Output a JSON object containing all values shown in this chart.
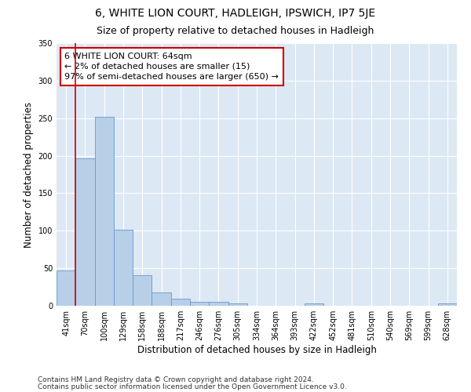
{
  "title1": "6, WHITE LION COURT, HADLEIGH, IPSWICH, IP7 5JE",
  "title2": "Size of property relative to detached houses in Hadleigh",
  "xlabel": "Distribution of detached houses by size in Hadleigh",
  "ylabel": "Number of detached properties",
  "categories": [
    "41sqm",
    "70sqm",
    "100sqm",
    "129sqm",
    "158sqm",
    "188sqm",
    "217sqm",
    "246sqm",
    "276sqm",
    "305sqm",
    "334sqm",
    "364sqm",
    "393sqm",
    "422sqm",
    "452sqm",
    "481sqm",
    "510sqm",
    "540sqm",
    "569sqm",
    "599sqm",
    "628sqm"
  ],
  "values": [
    47,
    196,
    252,
    101,
    41,
    18,
    9,
    5,
    5,
    3,
    0,
    0,
    0,
    3,
    0,
    0,
    0,
    0,
    0,
    0,
    3
  ],
  "bar_color": "#b8cfe8",
  "bar_edge_color": "#6699cc",
  "highlight_line_color": "#cc0000",
  "annotation_line1": "6 WHITE LION COURT: 64sqm",
  "annotation_line2": "← 2% of detached houses are smaller (15)",
  "annotation_line3": "97% of semi-detached houses are larger (650) →",
  "annotation_box_color": "#ffffff",
  "annotation_box_edge": "#cc0000",
  "ylim": [
    0,
    350
  ],
  "yticks": [
    0,
    50,
    100,
    150,
    200,
    250,
    300,
    350
  ],
  "background_color": "#dde8f5",
  "grid_color": "#ffffff",
  "footer1": "Contains HM Land Registry data © Crown copyright and database right 2024.",
  "footer2": "Contains public sector information licensed under the Open Government Licence v3.0.",
  "title1_fontsize": 10,
  "title2_fontsize": 9,
  "xlabel_fontsize": 8.5,
  "ylabel_fontsize": 8.5,
  "tick_fontsize": 7,
  "annotation_fontsize": 8,
  "footer_fontsize": 6.5
}
